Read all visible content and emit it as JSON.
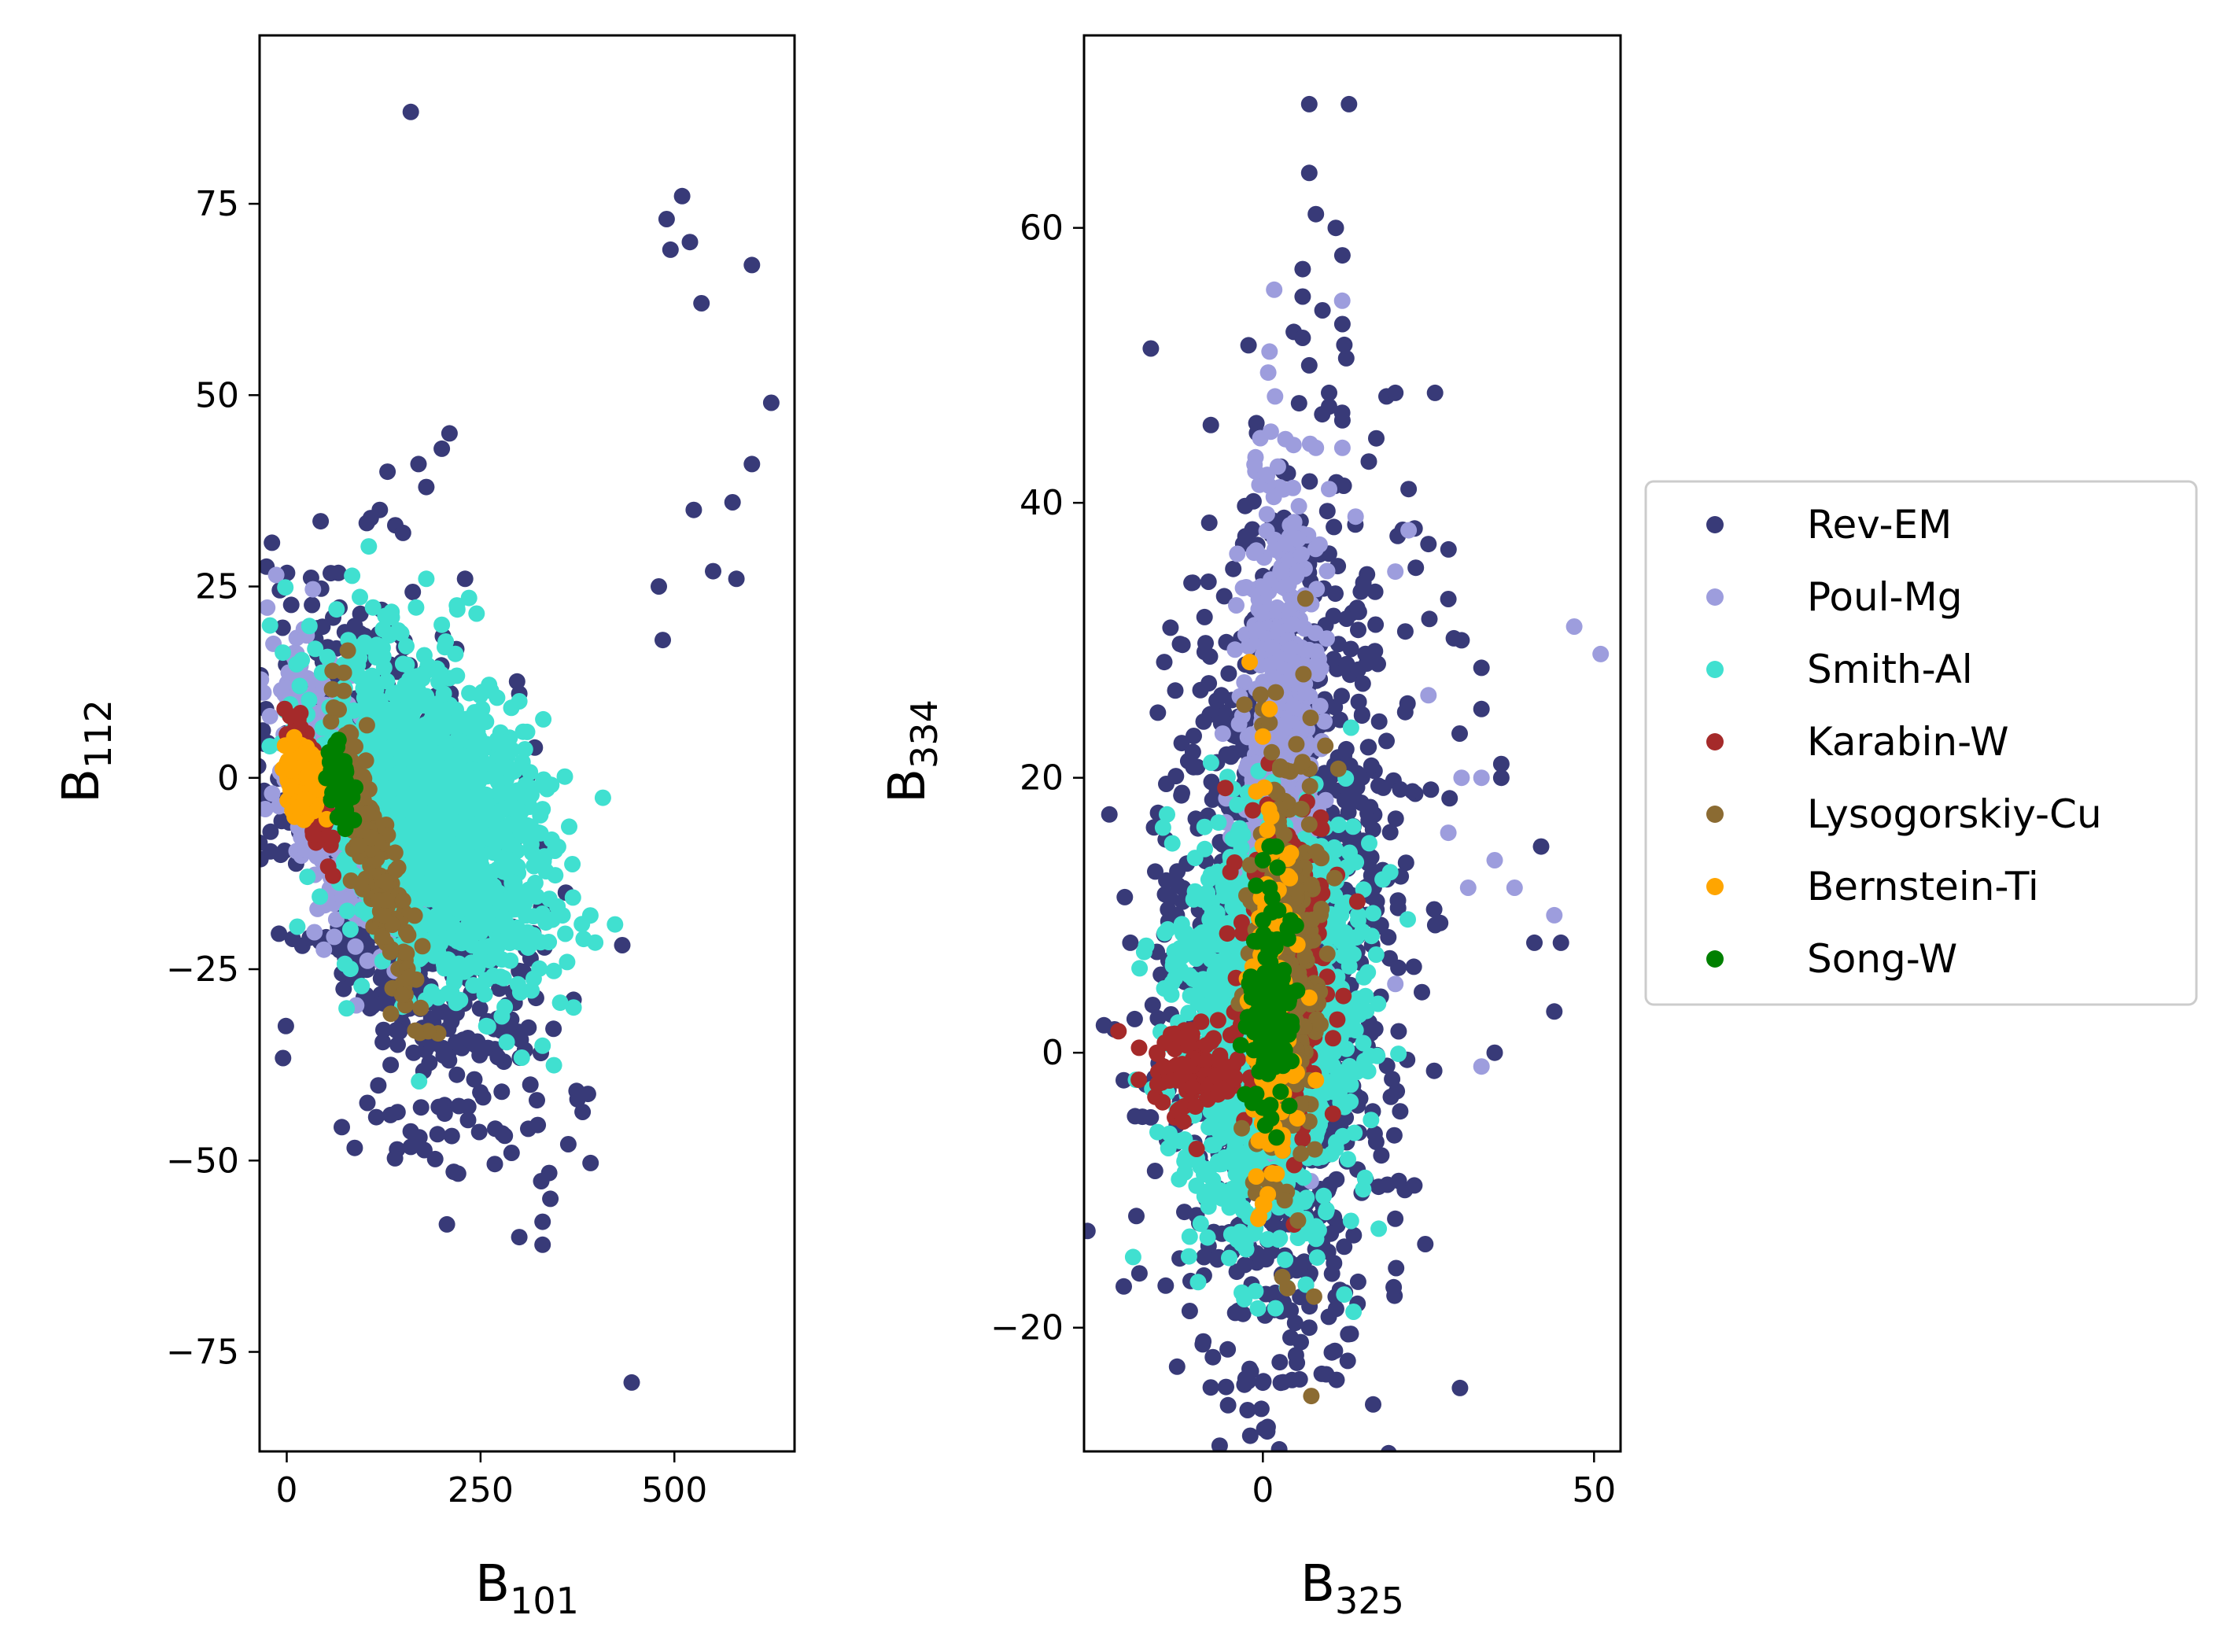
{
  "chart_data": [
    {
      "type": "scatter",
      "xlabel": "B",
      "xlabel_sub": "101",
      "ylabel": "B",
      "ylabel_sub": "112",
      "xlim": [
        -35,
        655
      ],
      "ylim": [
        -88,
        97
      ],
      "xticks": [
        0,
        250,
        500
      ],
      "xtick_labels": [
        "0",
        "250",
        "500"
      ],
      "yticks": [
        75,
        50,
        25,
        0,
        -25,
        -50,
        -75
      ],
      "ytick_labels": [
        "75",
        "50",
        "25",
        "0",
        "−25",
        "−50",
        "−75"
      ],
      "grid": false,
      "series": [
        {
          "name": "Rev-EM",
          "color": "#383a78",
          "clouds": [
            {
              "cx": 150,
              "cy": -12,
              "rx": 145,
              "ry": 27,
              "tilt": -0.1,
              "n": 850
            }
          ],
          "points": [
            [
              160,
              87
            ],
            [
              490,
              73
            ],
            [
              510,
              76
            ],
            [
              495,
              69
            ],
            [
              520,
              70
            ],
            [
              535,
              62
            ],
            [
              600,
              67
            ],
            [
              625,
              49
            ],
            [
              600,
              41
            ],
            [
              525,
              35
            ],
            [
              575,
              36
            ],
            [
              550,
              27
            ],
            [
              580,
              26
            ],
            [
              480,
              25
            ],
            [
              485,
              18
            ],
            [
              445,
              -79
            ],
            [
              210,
              45
            ],
            [
              200,
              43
            ],
            [
              170,
              41
            ],
            [
              180,
              38
            ],
            [
              130,
              40
            ],
            [
              120,
              35
            ],
            [
              140,
              33
            ],
            [
              150,
              32
            ],
            [
              230,
              26
            ],
            [
              300,
              11
            ],
            [
              310,
              0
            ],
            [
              330,
              -9
            ],
            [
              360,
              -15
            ],
            [
              370,
              -29
            ],
            [
              375,
              -42
            ],
            [
              340,
              -55
            ],
            [
              330,
              -58
            ],
            [
              330,
              -61
            ],
            [
              300,
              -60
            ],
            [
              290,
              -49
            ]
          ]
        },
        {
          "name": "Poul-Mg",
          "color": "#9d9ddd",
          "clouds": [
            {
              "cx": 60,
              "cy": -2,
              "rx": 60,
              "ry": 14,
              "tilt": -0.15,
              "n": 450
            }
          ],
          "points": []
        },
        {
          "name": "Smith-Al",
          "color": "#40e0d0",
          "clouds": [
            {
              "cx": 190,
              "cy": -5,
              "rx": 130,
              "ry": 18,
              "tilt": -0.05,
              "n": 1400
            }
          ],
          "points": [
            [
              180,
              26
            ],
            [
              200,
              20
            ],
            [
              220,
              22
            ],
            [
              310,
              6
            ],
            [
              300,
              10
            ],
            [
              370,
              -30
            ],
            [
              330,
              -35
            ],
            [
              350,
              -9
            ]
          ]
        },
        {
          "name": "Karabin-W",
          "color": "#a52a2a",
          "clouds": [
            {
              "cx": 28,
              "cy": 0,
              "rx": 24,
              "ry": 5,
              "tilt": -0.2,
              "n": 220
            }
          ],
          "points": []
        },
        {
          "name": "Lysogorskiy-Cu",
          "color": "#8b6b32",
          "clouds": [
            {
              "cx": 110,
              "cy": -9,
              "rx": 55,
              "ry": 8,
              "tilt": -0.35,
              "n": 160
            }
          ],
          "points": [
            [
              175,
              -22
            ],
            [
              165,
              -18
            ],
            [
              150,
              -16
            ]
          ]
        },
        {
          "name": "Bernstein-Ti",
          "color": "#ffa500",
          "clouds": [
            {
              "cx": 22,
              "cy": 0,
              "rx": 20,
              "ry": 3.5,
              "tilt": 0,
              "n": 200
            }
          ],
          "points": []
        },
        {
          "name": "Song-W",
          "color": "#008000",
          "clouds": [
            {
              "cx": 70,
              "cy": -1,
              "rx": 16,
              "ry": 4,
              "tilt": -0.1,
              "n": 60
            }
          ],
          "points": []
        }
      ]
    },
    {
      "type": "scatter",
      "xlabel": "B",
      "xlabel_sub": "325",
      "ylabel": "B",
      "ylabel_sub": "334",
      "xlim": [
        -27,
        54
      ],
      "ylim": [
        -29,
        74
      ],
      "xticks": [
        0,
        50
      ],
      "xtick_labels": [
        "0",
        "50"
      ],
      "yticks": [
        60,
        40,
        20,
        0,
        -20
      ],
      "ytick_labels": [
        "60",
        "40",
        "20",
        "0",
        "−20"
      ],
      "grid": false,
      "series": [
        {
          "name": "Rev-EM",
          "color": "#383a78",
          "clouds": [
            {
              "cx": 3,
              "cy": 8,
              "rx": 16,
              "ry": 28,
              "tilt": 0.15,
              "n": 1300
            }
          ],
          "points": [
            [
              7,
              69
            ],
            [
              13,
              69
            ],
            [
              7,
              64
            ],
            [
              8,
              61
            ],
            [
              11,
              60
            ],
            [
              12,
              58
            ],
            [
              6,
              57
            ],
            [
              6,
              55
            ],
            [
              9,
              54
            ],
            [
              12,
              53
            ],
            [
              6,
              52
            ],
            [
              7,
              50
            ],
            [
              10,
              48
            ],
            [
              10,
              47
            ],
            [
              12,
              46
            ],
            [
              20,
              48
            ],
            [
              26,
              48
            ],
            [
              22,
              41
            ],
            [
              16,
              43
            ],
            [
              25,
              37
            ],
            [
              28,
              33
            ],
            [
              30,
              30
            ],
            [
              33,
              28
            ],
            [
              33,
              25
            ],
            [
              36,
              20
            ],
            [
              36,
              21
            ],
            [
              42,
              15
            ],
            [
              41,
              8
            ],
            [
              45,
              8
            ],
            [
              44,
              3
            ],
            [
              35,
              0
            ],
            [
              -13,
              10
            ],
            [
              -20,
              8
            ],
            [
              -24,
              2
            ],
            [
              -21,
              -2
            ],
            [
              -21,
              -17
            ],
            [
              -9,
              -21
            ],
            [
              -2,
              -23
            ],
            [
              0,
              -24
            ],
            [
              5,
              -22
            ],
            [
              -3,
              -19
            ],
            [
              7,
              -20
            ]
          ]
        },
        {
          "name": "Poul-Mg",
          "color": "#9d9ddd",
          "clouds": [
            {
              "cx": 3,
              "cy": 20,
              "rx": 5,
              "ry": 20,
              "tilt": 0.08,
              "n": 700
            }
          ],
          "points": [
            [
              1,
              51
            ],
            [
              12,
              44
            ],
            [
              8,
              44
            ],
            [
              10,
              41
            ],
            [
              14,
              39
            ],
            [
              22,
              38
            ],
            [
              20,
              35
            ],
            [
              25,
              26
            ],
            [
              30,
              20
            ],
            [
              33,
              20
            ],
            [
              28,
              16
            ],
            [
              31,
              12
            ],
            [
              35,
              14
            ],
            [
              38,
              12
            ],
            [
              47,
              31
            ],
            [
              51,
              29
            ],
            [
              44,
              10
            ],
            [
              33,
              -1
            ],
            [
              20,
              5
            ]
          ]
        },
        {
          "name": "Smith-Al",
          "color": "#40e0d0",
          "clouds": [
            {
              "cx": 1,
              "cy": 2,
              "rx": 12,
              "ry": 13,
              "tilt": 0.05,
              "n": 1400
            }
          ],
          "points": []
        },
        {
          "name": "Karabin-W",
          "color": "#a52a2a",
          "clouds": [
            {
              "cx": 3,
              "cy": 6,
              "rx": 6,
              "ry": 11,
              "tilt": 0.1,
              "n": 300
            },
            {
              "cx": -10,
              "cy": -1,
              "rx": 6,
              "ry": 3,
              "tilt": 0,
              "n": 80
            }
          ],
          "points": [
            [
              -13,
              -2
            ],
            [
              -12,
              -5
            ],
            [
              -10,
              -7
            ],
            [
              -15,
              -1
            ],
            [
              -16,
              0
            ]
          ]
        },
        {
          "name": "Lysogorskiy-Cu",
          "color": "#8b6b32",
          "clouds": [
            {
              "cx": 3,
              "cy": 6,
              "rx": 5,
              "ry": 15,
              "tilt": 0.1,
              "n": 280
            }
          ],
          "points": [
            [
              0,
              25
            ],
            [
              1,
              24
            ],
            [
              7,
              -2
            ],
            [
              7,
              -5
            ]
          ]
        },
        {
          "name": "Bernstein-Ti",
          "color": "#ffa500",
          "clouds": [
            {
              "cx": 1,
              "cy": 3,
              "rx": 3,
              "ry": 12,
              "tilt": 0,
              "n": 180
            }
          ],
          "points": [
            [
              1,
              25
            ],
            [
              0,
              23
            ],
            [
              -1,
              19
            ],
            [
              -1,
              -9
            ],
            [
              0,
              -11
            ],
            [
              3,
              -6
            ],
            [
              7,
              4
            ],
            [
              8,
              -2
            ]
          ]
        },
        {
          "name": "Song-W",
          "color": "#008000",
          "clouds": [
            {
              "cx": 1,
              "cy": 3,
              "rx": 3,
              "ry": 6,
              "tilt": 0,
              "n": 160
            }
          ],
          "points": [
            [
              1,
              15
            ],
            [
              2,
              15
            ],
            [
              0,
              14
            ],
            [
              1,
              12
            ],
            [
              -1,
              -3
            ],
            [
              0,
              -4
            ]
          ]
        }
      ]
    }
  ],
  "legend": {
    "placement": "right",
    "entries": [
      {
        "label": "Rev-EM",
        "color": "#383a78"
      },
      {
        "label": "Poul-Mg",
        "color": "#9d9ddd"
      },
      {
        "label": "Smith-Al",
        "color": "#40e0d0"
      },
      {
        "label": "Karabin-W",
        "color": "#a52a2a"
      },
      {
        "label": "Lysogorskiy-Cu",
        "color": "#8b6b32"
      },
      {
        "label": "Bernstein-Ti",
        "color": "#ffa500"
      },
      {
        "label": "Song-W",
        "color": "#008000"
      }
    ]
  }
}
